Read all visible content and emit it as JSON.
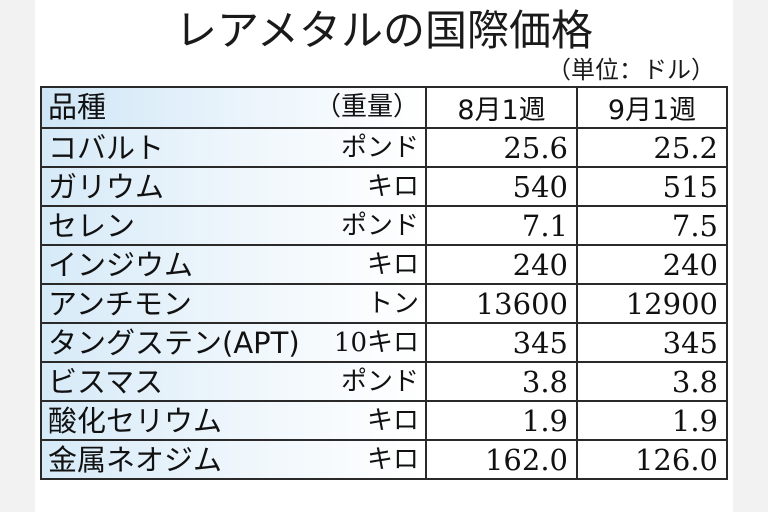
{
  "title": "レアメタルの国際価格",
  "unit": "（単位：ドル）",
  "header": {
    "item": "品種",
    "weight": "（重量）",
    "col1": "8月1週",
    "col2": "9月1週"
  },
  "rows": [
    {
      "name": "コバルト",
      "unit": "ポンド",
      "aug": "25.6",
      "sep": "25.2"
    },
    {
      "name": "ガリウム",
      "unit": "キロ",
      "aug": "540",
      "sep": "515"
    },
    {
      "name": "セレン",
      "unit": "ポンド",
      "aug": "7.1",
      "sep": "7.5"
    },
    {
      "name": "インジウム",
      "unit": "キロ",
      "aug": "240",
      "sep": "240"
    },
    {
      "name": "アンチモン",
      "unit": "トン",
      "aug": "13600",
      "sep": "12900"
    },
    {
      "name": "タングステン(APT)",
      "unit": "10キロ",
      "aug": "345",
      "sep": "345"
    },
    {
      "name": "ビスマス",
      "unit": "ポンド",
      "aug": "3.8",
      "sep": "3.8"
    },
    {
      "name": "酸化セリウム",
      "unit": "キロ",
      "aug": "1.9",
      "sep": "1.9"
    },
    {
      "name": "金属ネオジム",
      "unit": "キロ",
      "aug": "162.0",
      "sep": "126.0"
    }
  ]
}
